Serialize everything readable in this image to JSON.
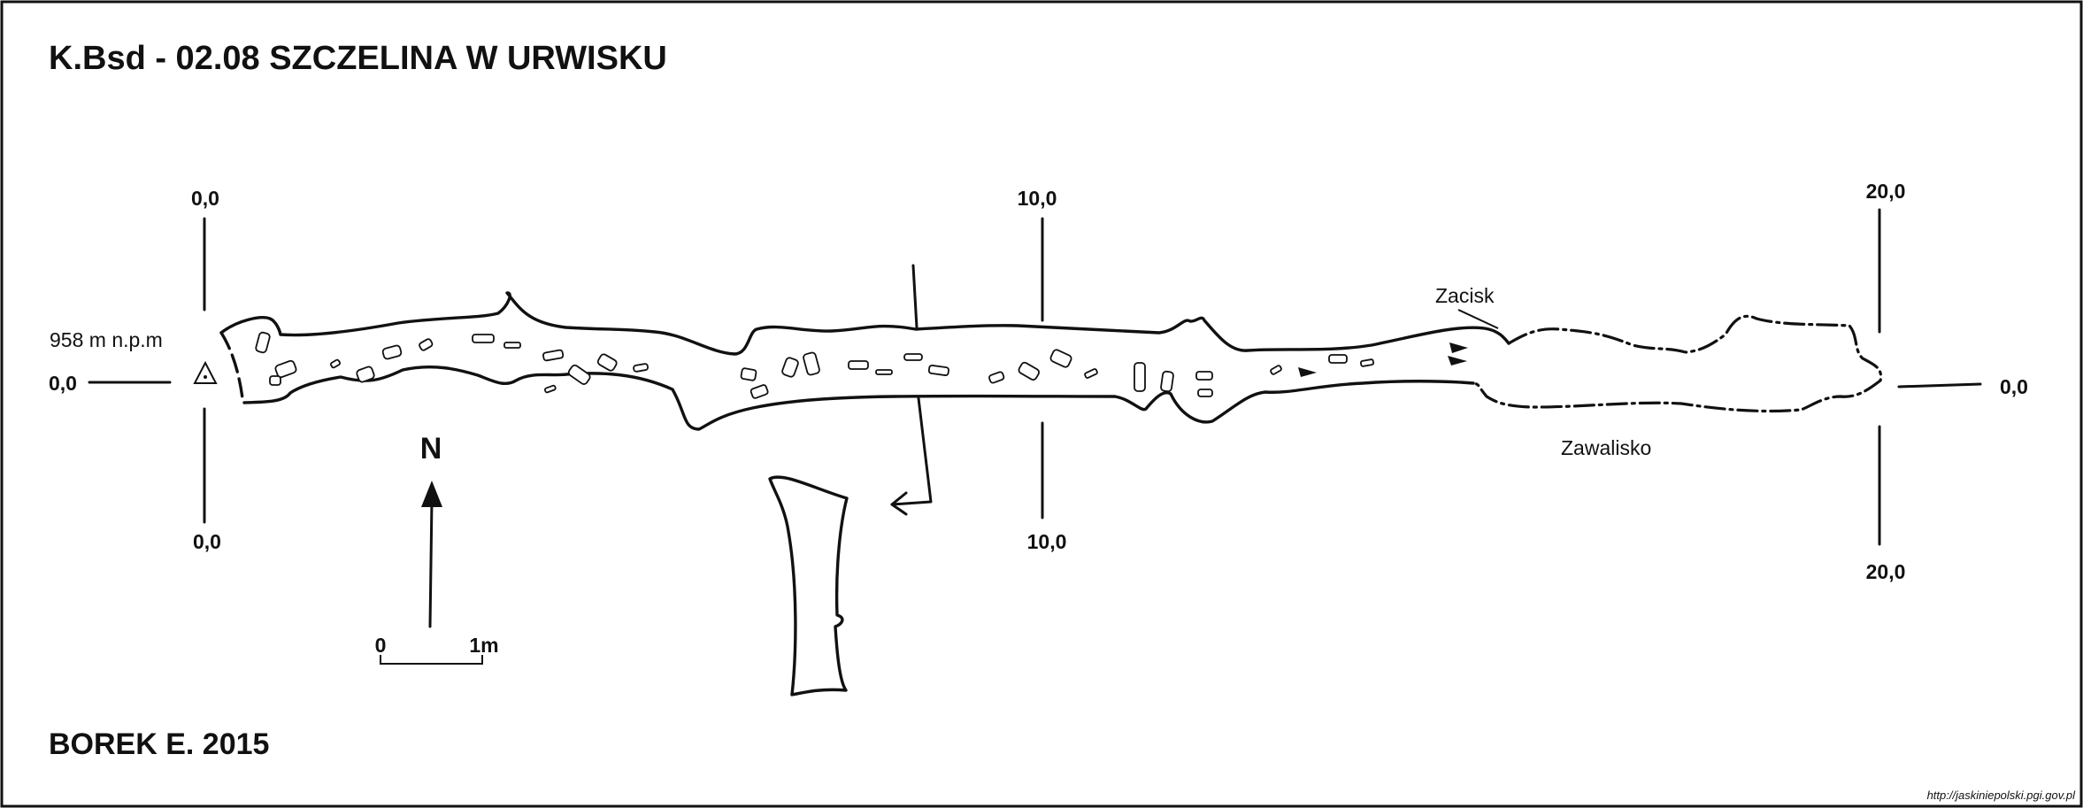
{
  "title": "K.Bsd - 02.08  SZCZELINA W URWISKU",
  "author": "BOREK E. 2015",
  "source_url": "http://jaskiniepolski.pgi.gov.pl",
  "elevation_label": "958 m n.p.m",
  "north_label": "N",
  "scale": {
    "start": "0",
    "end": "1m"
  },
  "sections": {
    "s0_top": "0,0",
    "s0_bottom": "0,0",
    "s10_top": "10,0",
    "s10_bottom": "10,0",
    "s20_top": "20,0",
    "s20_bottom": "20,0"
  },
  "axis": {
    "left": "0,0",
    "right": "0,0"
  },
  "annotations": {
    "squeeze": "Zacisk",
    "collapse": "Zawalisko"
  }
}
